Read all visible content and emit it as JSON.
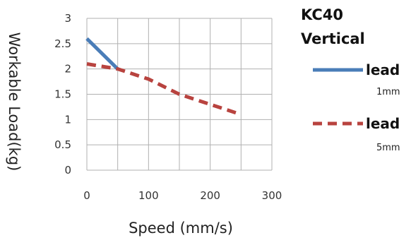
{
  "chart_data": {
    "type": "line",
    "title": "",
    "xlabel": "Speed (mm/s)",
    "ylabel": "Workable Load(kg)",
    "xlim": [
      0,
      300
    ],
    "ylim": [
      0,
      3
    ],
    "xticks": [
      0,
      100,
      200,
      300
    ],
    "yticks": [
      0,
      0.5,
      1,
      1.5,
      2,
      2.5,
      3
    ],
    "xtick_labels": [
      "0",
      "100",
      "200",
      "300"
    ],
    "ytick_labels": [
      "0",
      "0.5",
      "1",
      "1.5",
      "2",
      "2.5",
      "3"
    ],
    "grid": true,
    "legend_position": "right",
    "legend": {
      "title_line1": "KC40",
      "title_line2": "Vertical"
    },
    "series": [
      {
        "name": "lead",
        "sub": "1mm",
        "style": "solid",
        "color": "#4a7db8",
        "x": [
          0,
          50
        ],
        "y": [
          2.6,
          2.0
        ]
      },
      {
        "name": "lead",
        "sub": "5mm",
        "style": "dashed",
        "color": "#b8433f",
        "x": [
          0,
          50,
          100,
          150,
          200,
          250
        ],
        "y": [
          2.1,
          2.0,
          1.8,
          1.5,
          1.3,
          1.1
        ]
      }
    ]
  }
}
